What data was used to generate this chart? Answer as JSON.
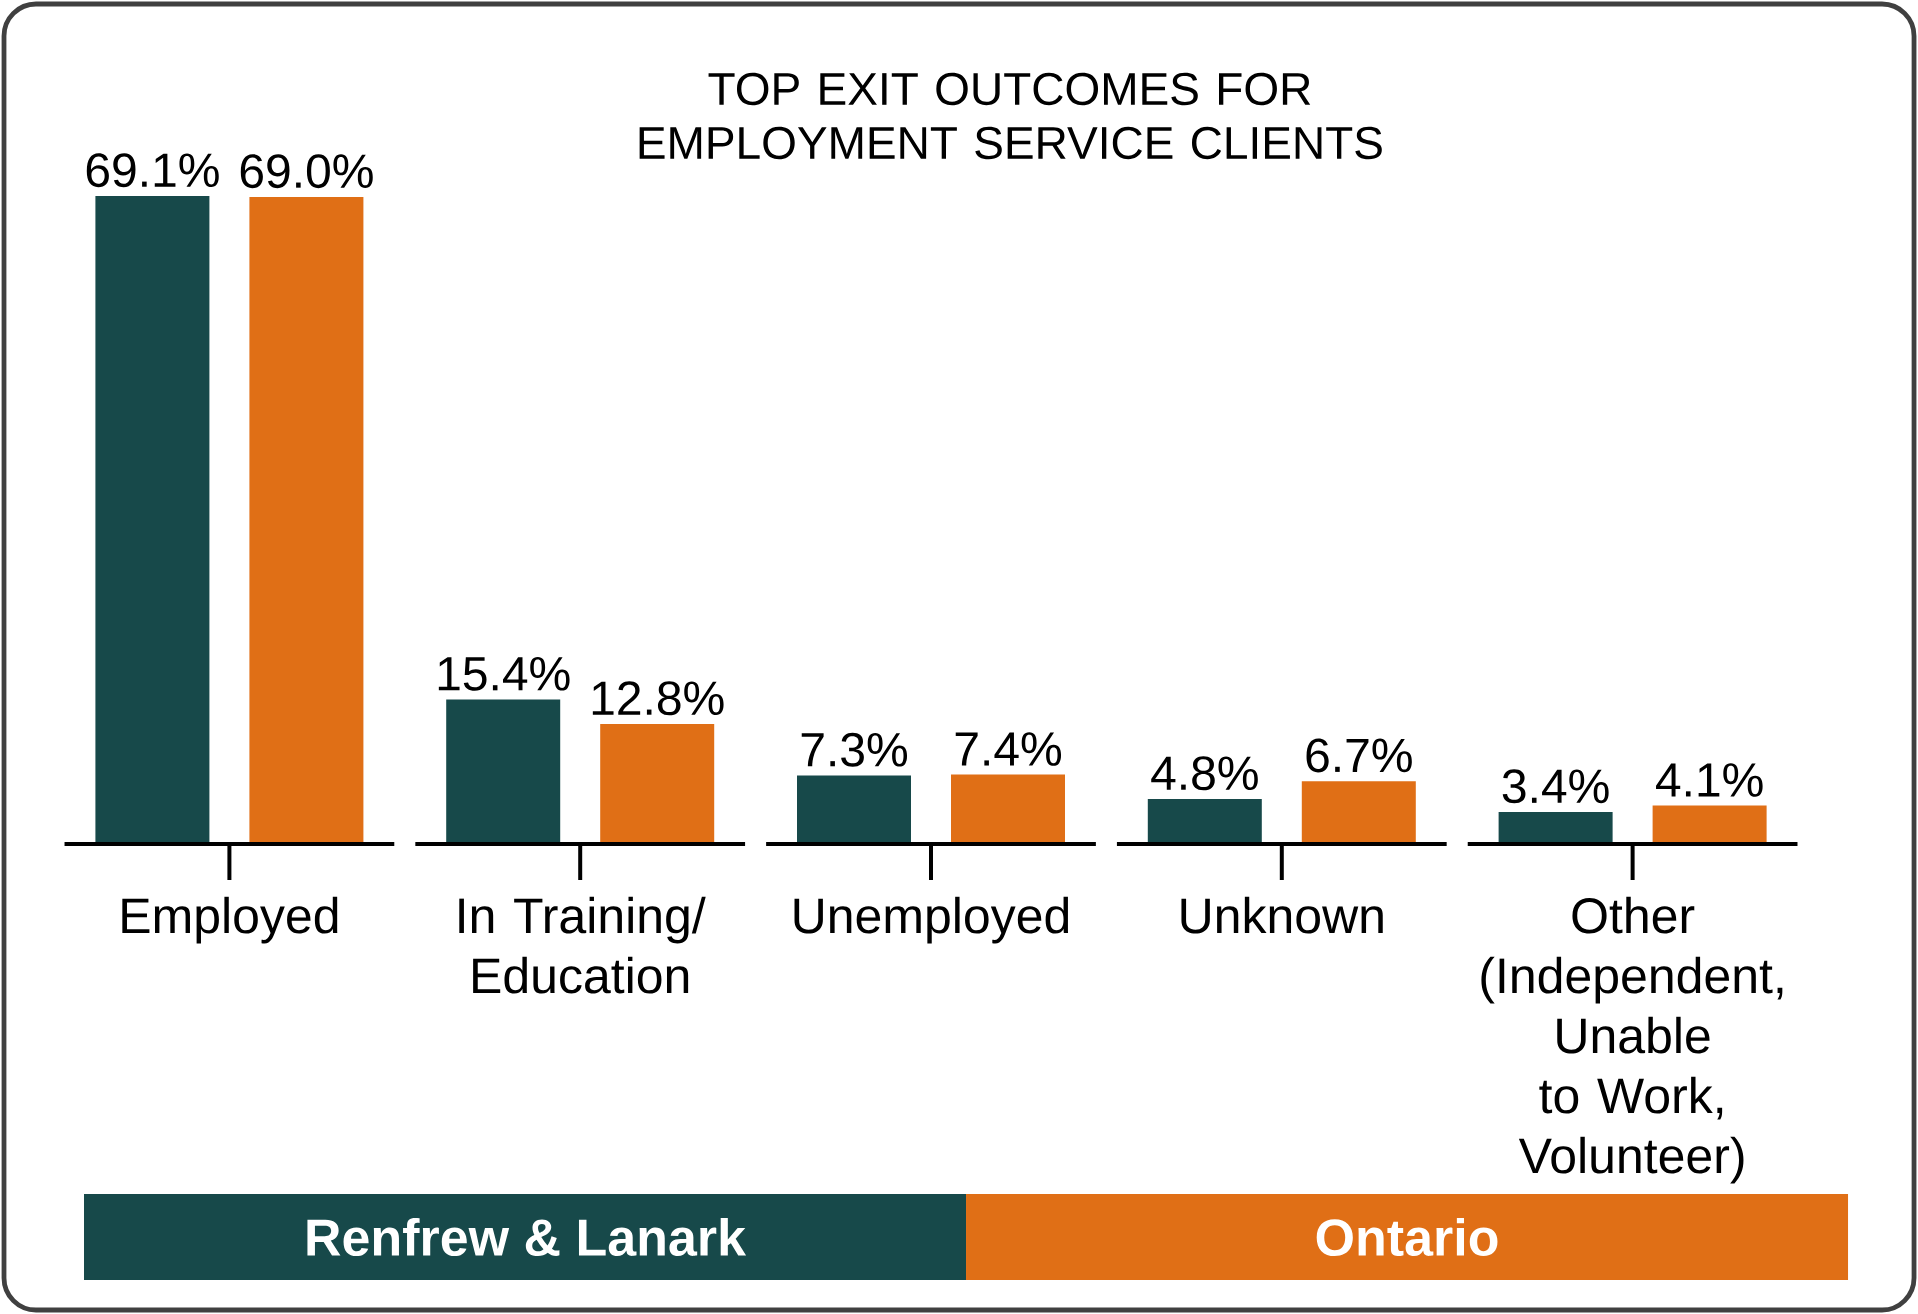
{
  "chart_data": {
    "type": "bar",
    "title": "TOP EXIT OUTCOMES FOR EMPLOYMENT SERVICE CLIENTS",
    "categories": [
      "Employed",
      "In Training/ Education",
      "Unemployed",
      "Unknown",
      "Other (Independent, Unable to Work, Volunteer)"
    ],
    "series": [
      {
        "name": "Renfrew & Lanark",
        "color": "#17494a",
        "values": [
          69.1,
          15.4,
          7.3,
          4.8,
          3.4
        ],
        "value_labels": [
          "69.1%",
          "15.4%",
          "7.3%",
          "4.8%",
          "3.4%"
        ]
      },
      {
        "name": "Ontario",
        "color": "#e06f16",
        "values": [
          69.0,
          12.8,
          7.4,
          6.7,
          4.1
        ],
        "value_labels": [
          "69.0%",
          "12.8%",
          "7.4%",
          "6.7%",
          "4.1%"
        ]
      }
    ],
    "legend": "bottom"
  }
}
